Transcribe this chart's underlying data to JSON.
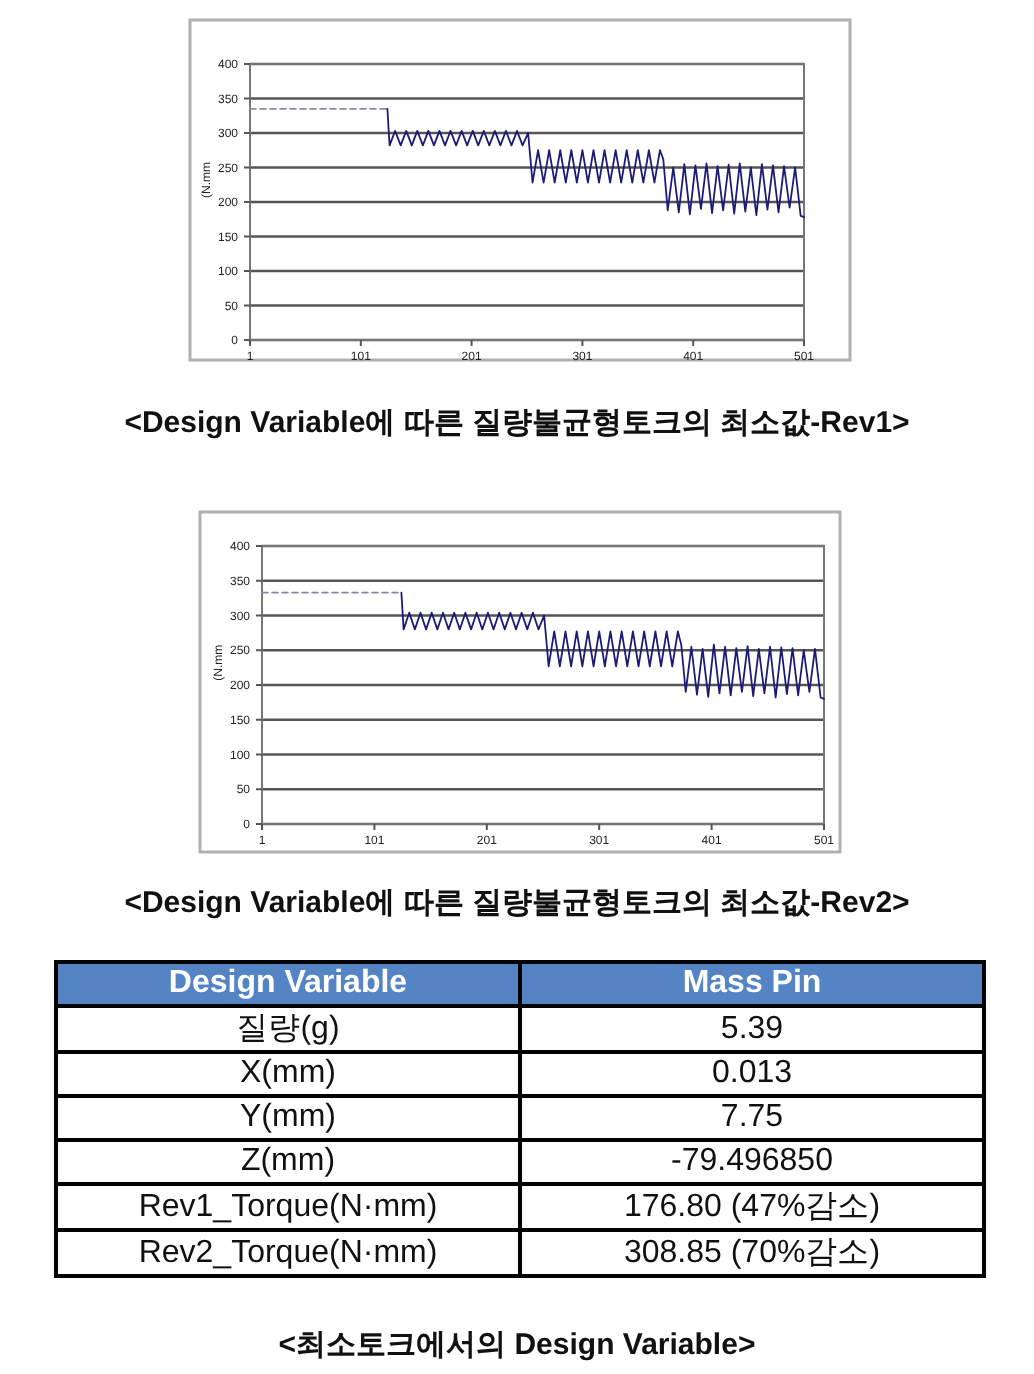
{
  "chart_data": [
    {
      "type": "line",
      "title": "<Design Variable에 따른 질량불균형토크의 최소값-Rev1>",
      "ylabel": "(N.mm",
      "xlim": [
        1,
        501
      ],
      "xticks": [
        1,
        101,
        201,
        301,
        401,
        501
      ],
      "ylim": [
        0,
        400
      ],
      "yticks": [
        0,
        50,
        100,
        150,
        200,
        250,
        300,
        350,
        400
      ],
      "grid": "y",
      "series": [
        {
          "color": "#8a8aa8",
          "line_style": "dashed",
          "x": [
            1,
            125
          ],
          "values": [
            335,
            335
          ]
        },
        {
          "color": "#1c1c78",
          "line_style": "solid",
          "x": [
            125,
            127,
            132,
            137,
            142,
            147,
            152,
            157,
            162,
            167,
            172,
            177,
            182,
            187,
            192,
            197,
            202,
            207,
            212,
            217,
            222,
            227,
            232,
            237,
            242,
            247,
            252,
            256,
            261,
            266,
            271,
            276,
            281,
            286,
            291,
            296,
            301,
            306,
            311,
            316,
            321,
            326,
            331,
            336,
            341,
            346,
            351,
            356,
            361,
            366,
            371,
            374,
            378,
            383,
            388,
            393,
            398,
            403,
            408,
            413,
            418,
            423,
            428,
            433,
            438,
            443,
            448,
            453,
            458,
            463,
            468,
            473,
            478,
            483,
            488,
            493,
            498,
            501
          ],
          "values": [
            335,
            282,
            303,
            282,
            303,
            282,
            303,
            282,
            303,
            282,
            303,
            282,
            303,
            282,
            303,
            282,
            303,
            282,
            303,
            282,
            303,
            282,
            303,
            282,
            303,
            282,
            300,
            228,
            275,
            228,
            275,
            228,
            275,
            228,
            275,
            228,
            275,
            228,
            275,
            228,
            275,
            228,
            275,
            228,
            275,
            228,
            275,
            228,
            275,
            228,
            275,
            262,
            188,
            250,
            185,
            255,
            182,
            253,
            190,
            256,
            184,
            252,
            188,
            254,
            183,
            256,
            186,
            250,
            181,
            255,
            189,
            253,
            185,
            252,
            192,
            250,
            180,
            178
          ]
        }
      ]
    },
    {
      "type": "line",
      "title": "<Design Variable에 따른 질량불균형토크의 최소값-Rev2>",
      "ylabel": "(N.mm",
      "xlim": [
        1,
        501
      ],
      "xticks": [
        1,
        101,
        201,
        301,
        401,
        501
      ],
      "ylim": [
        0,
        400
      ],
      "yticks": [
        0,
        50,
        100,
        150,
        200,
        250,
        300,
        350,
        400
      ],
      "grid": "y",
      "series": [
        {
          "color": "#8a8aa8",
          "line_style": "dashed",
          "x": [
            1,
            125
          ],
          "values": [
            333,
            333
          ]
        },
        {
          "color": "#1c1c78",
          "line_style": "solid",
          "x": [
            125,
            127,
            132,
            137,
            142,
            147,
            152,
            157,
            162,
            167,
            172,
            177,
            182,
            187,
            192,
            197,
            202,
            207,
            212,
            217,
            222,
            227,
            232,
            237,
            242,
            247,
            252,
            256,
            261,
            266,
            271,
            276,
            281,
            286,
            291,
            296,
            301,
            306,
            311,
            316,
            321,
            326,
            331,
            336,
            341,
            346,
            351,
            356,
            361,
            366,
            371,
            374,
            378,
            383,
            388,
            393,
            398,
            403,
            408,
            413,
            418,
            423,
            428,
            433,
            438,
            443,
            448,
            453,
            458,
            463,
            468,
            473,
            478,
            483,
            488,
            493,
            498,
            501
          ],
          "values": [
            333,
            280,
            304,
            280,
            304,
            280,
            304,
            280,
            304,
            280,
            304,
            280,
            304,
            280,
            304,
            280,
            304,
            280,
            304,
            280,
            304,
            280,
            304,
            280,
            304,
            280,
            300,
            227,
            277,
            227,
            277,
            227,
            277,
            227,
            277,
            227,
            277,
            227,
            277,
            227,
            277,
            227,
            277,
            227,
            277,
            227,
            277,
            227,
            277,
            227,
            277,
            258,
            190,
            255,
            186,
            252,
            183,
            258,
            188,
            255,
            185,
            253,
            190,
            256,
            184,
            252,
            188,
            255,
            182,
            254,
            187,
            253,
            185,
            250,
            190,
            252,
            182,
            180
          ]
        }
      ]
    },
    {
      "type": "other",
      "title": "<최소토크에서의 Design Variable>",
      "annotations": [
        "Design Variable",
        "Mass Pin",
        "질량(g)",
        "5.39",
        "X(mm)",
        "0.013",
        "Y(mm)",
        "7.75",
        "Z(mm)",
        "-79.496850",
        "Rev1_Torque(N·mm)",
        "176.80 (47%감소)",
        "Rev2_Torque(N·mm)",
        "308.85 (70%감소)"
      ]
    }
  ]
}
